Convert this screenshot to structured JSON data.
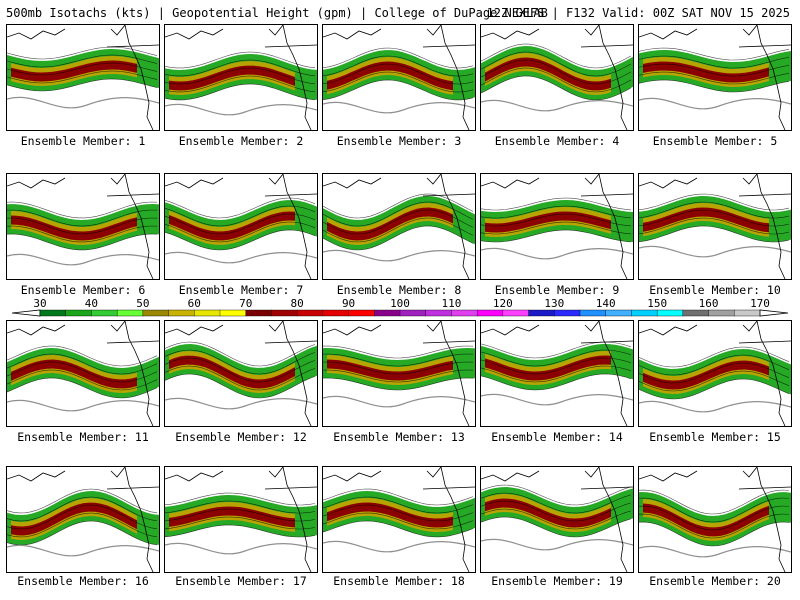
{
  "header": {
    "left_title": "500mb Isotachs (kts) | Geopotential Height (gpm) | College of DuPage NEXLAB",
    "right_title": "12Z GEFS | F132 Valid: 00Z SAT NOV 15 2025"
  },
  "members": [
    "Ensemble Member: 1",
    "Ensemble Member: 2",
    "Ensemble Member: 3",
    "Ensemble Member: 4",
    "Ensemble Member: 5",
    "Ensemble Member: 6",
    "Ensemble Member: 7",
    "Ensemble Member: 8",
    "Ensemble Member: 9",
    "Ensemble Member: 10",
    "Ensemble Member: 11",
    "Ensemble Member: 12",
    "Ensemble Member: 13",
    "Ensemble Member: 14",
    "Ensemble Member: 15",
    "Ensemble Member: 16",
    "Ensemble Member: 17",
    "Ensemble Member: 18",
    "Ensemble Member: 19",
    "Ensemble Member: 20"
  ],
  "colorbar": {
    "ticks": [
      "30",
      "40",
      "50",
      "60",
      "70",
      "80",
      "90",
      "100",
      "110",
      "120",
      "130",
      "140",
      "150",
      "160",
      "170"
    ],
    "colors": [
      "#00791c",
      "#1aa51a",
      "#33cc33",
      "#66ff33",
      "#998800",
      "#c8b400",
      "#e6e600",
      "#ffff00",
      "#7a0000",
      "#a00000",
      "#c80000",
      "#e60000",
      "#ff0000",
      "#8b008b",
      "#a020c0",
      "#c030e0",
      "#e040f0",
      "#ff00ff",
      "#ff40ff",
      "#1a1ac8",
      "#2a2aff",
      "#1e90ff",
      "#40b0ff",
      "#00d0ff",
      "#00ffff",
      "#707070",
      "#a0a0a0",
      "#c8c8c8"
    ]
  }
}
